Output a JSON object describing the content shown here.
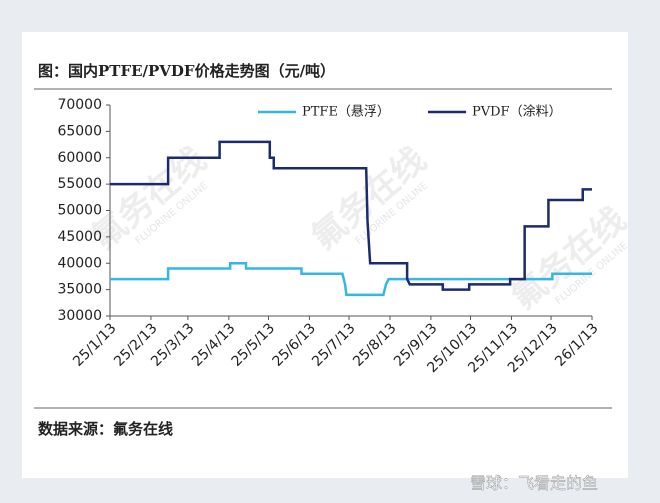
{
  "chart_data": {
    "type": "line",
    "title": "图：国内PTFE/PVDF价格走势图（元/吨）",
    "source": "数据来源：氟务在线",
    "chart_watermark": "氟务在线",
    "chart_watermark_sub": "FLUORINE ONLINE",
    "footer_watermark": "雪球：飞看走的鱼",
    "xlim": [
      "25/1/13",
      "26/1/13"
    ],
    "xticks": [
      "25/1/13",
      "25/2/13",
      "25/3/13",
      "25/4/13",
      "25/5/13",
      "25/6/13",
      "25/7/13",
      "25/8/13",
      "25/9/13",
      "25/10/13",
      "25/11/13",
      "25/12/13",
      "26/1/13"
    ],
    "ylim": [
      30000,
      70000
    ],
    "yticks": [
      30000,
      35000,
      40000,
      45000,
      50000,
      55000,
      60000,
      65000,
      70000
    ],
    "series": [
      {
        "name": "PTFE（悬浮）",
        "color": "#35b6e3",
        "x": [
          "25/1/13",
          "25/2/26",
          "25/2/26",
          "25/4/14",
          "25/4/14",
          "25/4/26",
          "25/4/26",
          "25/6/7",
          "25/6/7",
          "25/7/8",
          "25/7/10",
          "25/7/11",
          "25/8/8",
          "25/8/10",
          "25/8/12",
          "25/12/14",
          "25/12/14",
          "26/1/13"
        ],
        "values": [
          37000,
          37000,
          39000,
          39000,
          40000,
          40000,
          39000,
          39000,
          38000,
          38000,
          36000,
          34000,
          34000,
          36000,
          37000,
          37000,
          38000,
          38000
        ]
      },
      {
        "name": "PVDF（涂料）",
        "color": "#1c2a6e",
        "x": [
          "25/1/13",
          "25/2/26",
          "25/2/26",
          "25/4/6",
          "25/4/6",
          "25/5/14",
          "25/5/14",
          "25/5/17",
          "25/5/17",
          "25/7/26",
          "25/7/27",
          "25/7/29",
          "25/8/26",
          "25/8/26",
          "25/8/28",
          "25/9/22",
          "25/9/22",
          "25/10/12",
          "25/10/12",
          "25/11/12",
          "25/11/12",
          "25/11/23",
          "25/11/23",
          "25/12/11",
          "25/12/11",
          "26/1/6",
          "26/1/6",
          "26/1/13"
        ],
        "values": [
          55000,
          55000,
          60000,
          60000,
          63000,
          63000,
          60000,
          60000,
          58000,
          58000,
          48000,
          40000,
          40000,
          37000,
          36000,
          36000,
          35000,
          35000,
          36000,
          36000,
          37000,
          37000,
          47000,
          47000,
          52000,
          52000,
          54000,
          54000
        ]
      }
    ]
  }
}
